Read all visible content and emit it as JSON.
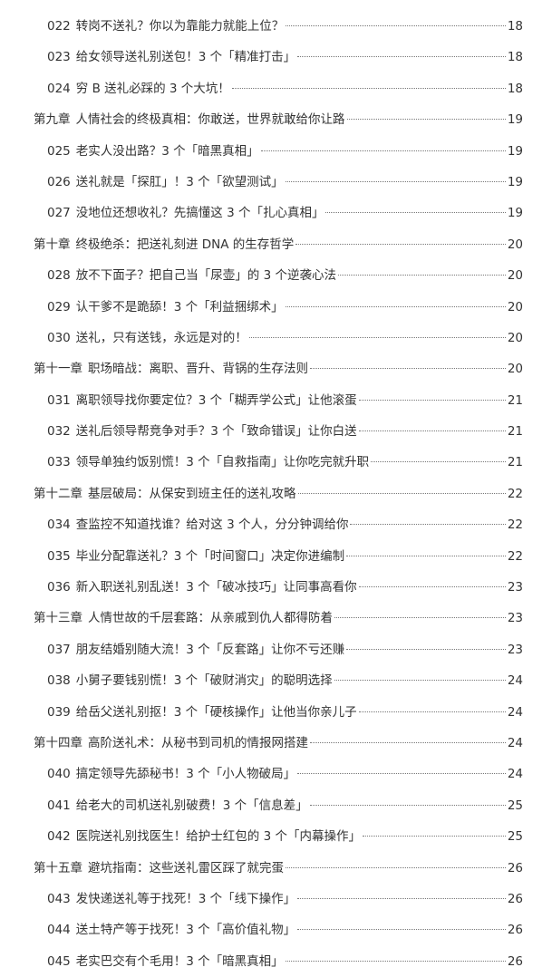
{
  "toc": [
    {
      "type": "item",
      "num": "022",
      "title": "转岗不送礼？你以为靠能力就能上位？",
      "page": "18"
    },
    {
      "type": "item",
      "num": "023",
      "title": "给女领导送礼别送包！3 个「精准打击」",
      "page": "18"
    },
    {
      "type": "item",
      "num": "024",
      "title": "穷 B 送礼必踩的 3 个大坑！",
      "page": "18"
    },
    {
      "type": "chapter",
      "num": "第九章",
      "title": "人情社会的终极真相：你敢送，世界就敢给你让路",
      "page": "19"
    },
    {
      "type": "item",
      "num": "025",
      "title": "老实人没出路？3 个「暗黑真相」",
      "page": "19"
    },
    {
      "type": "item",
      "num": "026",
      "title": "送礼就是「探肛」！3 个「欲望测试」",
      "page": "19"
    },
    {
      "type": "item",
      "num": "027",
      "title": "没地位还想收礼？先搞懂这 3 个「扎心真相」",
      "page": "19"
    },
    {
      "type": "chapter",
      "num": "第十章",
      "title": "终极绝杀：把送礼刻进 DNA 的生存哲学",
      "page": "20"
    },
    {
      "type": "item",
      "num": "028",
      "title": "放不下面子？把自己当「尿壶」的 3 个逆袭心法",
      "page": "20"
    },
    {
      "type": "item",
      "num": "029",
      "title": "认干爹不是跪舔！3 个「利益捆绑术」",
      "page": "20"
    },
    {
      "type": "item",
      "num": "030",
      "title": "送礼，只有送钱，永远是对的！",
      "page": "20"
    },
    {
      "type": "chapter",
      "num": "第十一章",
      "title": "职场暗战：离职、晋升、背锅的生存法则",
      "page": "20"
    },
    {
      "type": "item",
      "num": "031",
      "title": "离职领导找你要定位？3 个「糊弄学公式」让他滚蛋",
      "page": "21"
    },
    {
      "type": "item",
      "num": "032",
      "title": "送礼后领导帮竞争对手？3 个「致命错误」让你白送",
      "page": "21"
    },
    {
      "type": "item",
      "num": "033",
      "title": "领导单独约饭别慌！3 个「自救指南」让你吃完就升职",
      "page": "21"
    },
    {
      "type": "chapter",
      "num": "第十二章",
      "title": "基层破局：从保安到班主任的送礼攻略",
      "page": "22"
    },
    {
      "type": "item",
      "num": "034",
      "title": "查监控不知道找谁？给对这 3 个人，分分钟调给你",
      "page": "22"
    },
    {
      "type": "item",
      "num": "035",
      "title": "毕业分配靠送礼？3 个「时间窗口」决定你进编制",
      "page": "22"
    },
    {
      "type": "item",
      "num": "036",
      "title": "新入职送礼别乱送！3 个「破冰技巧」让同事高看你",
      "page": "23"
    },
    {
      "type": "chapter",
      "num": "第十三章",
      "title": "人情世故的千层套路：从亲戚到仇人都得防着",
      "page": "23"
    },
    {
      "type": "item",
      "num": "037",
      "title": "朋友结婚别随大流！3 个「反套路」让你不亏还赚",
      "page": "23"
    },
    {
      "type": "item",
      "num": "038",
      "title": "小舅子要钱别慌！3 个「破财消灾」的聪明选择",
      "page": "24"
    },
    {
      "type": "item",
      "num": "039",
      "title": "给岳父送礼别抠！3 个「硬核操作」让他当你亲儿子",
      "page": "24"
    },
    {
      "type": "chapter",
      "num": "第十四章",
      "title": "高阶送礼术：从秘书到司机的情报网搭建",
      "page": "24"
    },
    {
      "type": "item",
      "num": "040",
      "title": "搞定领导先舔秘书！3 个「小人物破局」",
      "page": "24"
    },
    {
      "type": "item",
      "num": "041",
      "title": "给老大的司机送礼别破费！3 个「信息差」",
      "page": "25"
    },
    {
      "type": "item",
      "num": "042",
      "title": "医院送礼别找医生！给护士红包的 3 个「内幕操作」",
      "page": "25"
    },
    {
      "type": "chapter",
      "num": "第十五章",
      "title": "避坑指南：这些送礼雷区踩了就完蛋",
      "page": "26"
    },
    {
      "type": "item",
      "num": "043",
      "title": "发快递送礼等于找死！3 个「线下操作」",
      "page": "26"
    },
    {
      "type": "item",
      "num": "044",
      "title": "送土特产等于找死！3 个「高价值礼物」",
      "page": "26"
    },
    {
      "type": "item",
      "num": "045",
      "title": "老实巴交有个毛用！3 个「暗黑真相」",
      "page": "26"
    }
  ]
}
